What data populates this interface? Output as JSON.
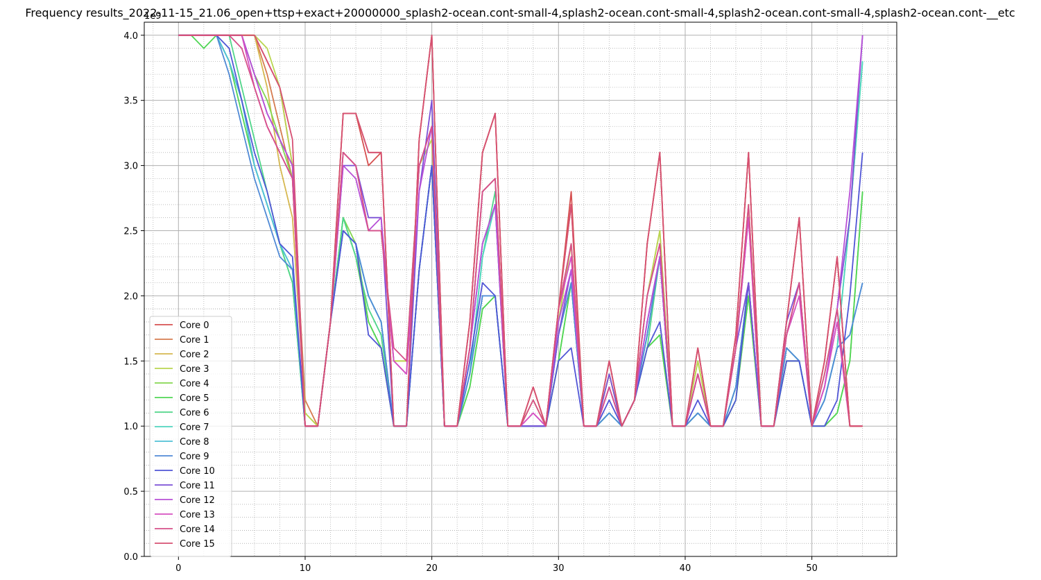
{
  "chart_data": {
    "type": "line",
    "title": "Frequency results_2022-11-15_21.06_open+ttsp+exact+20000000_splash2-ocean.cont-small-4,splash2-ocean.cont-small-4,splash2-ocean.cont-small-4,splash2-ocean.cont-__etc",
    "xlabel": "",
    "ylabel": "",
    "y_offset_label": "1e9",
    "xlim": [
      -2.7,
      56.7
    ],
    "ylim": [
      0,
      4.1
    ],
    "x_ticks": [
      "0",
      "10",
      "20",
      "30",
      "40",
      "50"
    ],
    "y_ticks": [
      "0.0",
      "0.5",
      "1.0",
      "1.5",
      "2.0",
      "2.5",
      "3.0",
      "3.5",
      "4.0"
    ],
    "grid": true,
    "minor_grid": true,
    "legend_position": "lower-left",
    "x": [
      0,
      1,
      2,
      3,
      4,
      5,
      6,
      7,
      8,
      9,
      10,
      11,
      12,
      13,
      14,
      15,
      16,
      17,
      18,
      19,
      20,
      21,
      22,
      23,
      24,
      25,
      26,
      27,
      28,
      29,
      30,
      31,
      32,
      33,
      34,
      35,
      36,
      37,
      38,
      39,
      40,
      41,
      42,
      43,
      44,
      45,
      46,
      47,
      48,
      49,
      50,
      51,
      52,
      53,
      54
    ],
    "series": [
      {
        "name": "Core 0",
        "color": "#d65050",
        "values": [
          4.0,
          4.0,
          4.0,
          4.0,
          4.0,
          4.0,
          4.0,
          3.8,
          3.6,
          3.0,
          1.0,
          1.0,
          1.8,
          3.4,
          3.4,
          3.0,
          3.1,
          1.0,
          1.0,
          3.2,
          4.0,
          1.0,
          1.0,
          1.8,
          3.1,
          3.4,
          1.0,
          1.0,
          1.3,
          1.0,
          1.9,
          2.8,
          1.0,
          1.0,
          1.5,
          1.0,
          1.2,
          2.4,
          3.1,
          1.0,
          1.0,
          1.6,
          1.0,
          1.0,
          1.7,
          3.1,
          1.0,
          1.0,
          1.8,
          2.6,
          1.0,
          1.5,
          2.3,
          1.0,
          1.0
        ]
      },
      {
        "name": "Core 1",
        "color": "#d67b50",
        "values": [
          4.0,
          4.0,
          4.0,
          4.0,
          4.0,
          4.0,
          4.0,
          3.7,
          3.3,
          2.9,
          1.2,
          1.0,
          1.8,
          3.4,
          3.4,
          3.1,
          3.1,
          1.0,
          1.0,
          3.2,
          4.0,
          1.0,
          1.0,
          1.8,
          3.1,
          3.4,
          1.0,
          1.0,
          1.3,
          1.0,
          1.9,
          2.7,
          1.0,
          1.0,
          1.5,
          1.0,
          1.2,
          2.4,
          3.1,
          1.0,
          1.0,
          1.6,
          1.0,
          1.0,
          1.7,
          3.1,
          1.0,
          1.0,
          1.8,
          2.6,
          1.0,
          1.5,
          2.3,
          1.0,
          1.0
        ]
      },
      {
        "name": "Core 2",
        "color": "#d6b850",
        "values": [
          4.0,
          4.0,
          4.0,
          4.0,
          4.0,
          4.0,
          4.0,
          3.6,
          3.0,
          2.6,
          1.1,
          1.0,
          1.8,
          3.1,
          3.0,
          2.5,
          2.5,
          1.5,
          1.5,
          3.0,
          3.2,
          1.0,
          1.0,
          1.6,
          2.8,
          2.9,
          1.0,
          1.0,
          1.2,
          1.0,
          1.8,
          2.4,
          1.0,
          1.0,
          1.4,
          1.0,
          1.2,
          2.0,
          2.5,
          1.0,
          1.0,
          1.5,
          1.0,
          1.0,
          1.6,
          2.7,
          1.0,
          1.0,
          1.7,
          2.1,
          1.0,
          1.4,
          1.9,
          1.0,
          1.0
        ]
      },
      {
        "name": "Core 3",
        "color": "#b9d650",
        "values": [
          4.0,
          4.0,
          4.0,
          4.0,
          4.0,
          4.0,
          4.0,
          3.9,
          3.6,
          3.0,
          1.1,
          1.0,
          1.8,
          3.1,
          3.0,
          2.5,
          2.5,
          1.5,
          1.5,
          3.0,
          3.2,
          1.0,
          1.0,
          1.6,
          2.8,
          2.9,
          1.0,
          1.0,
          1.2,
          1.0,
          1.8,
          2.4,
          1.0,
          1.0,
          1.4,
          1.0,
          1.2,
          2.0,
          2.5,
          1.0,
          1.0,
          1.5,
          1.0,
          1.0,
          1.6,
          2.7,
          1.0,
          1.0,
          1.7,
          2.1,
          1.0,
          1.4,
          1.9,
          1.0,
          1.0
        ]
      },
      {
        "name": "Core 4",
        "color": "#84d650",
        "values": [
          4.0,
          4.0,
          4.0,
          4.0,
          4.0,
          4.0,
          3.7,
          3.5,
          3.2,
          2.9,
          1.0,
          1.0,
          1.8,
          2.6,
          2.4,
          1.8,
          1.6,
          1.0,
          1.0,
          2.2,
          3.0,
          1.0,
          1.0,
          1.3,
          1.9,
          2.0,
          1.0,
          1.0,
          1.0,
          1.0,
          1.5,
          2.1,
          1.0,
          1.0,
          1.1,
          1.0,
          1.2,
          1.6,
          1.7,
          1.0,
          1.0,
          1.1,
          1.0,
          1.0,
          1.2,
          2.0,
          1.0,
          1.0,
          1.5,
          1.5,
          1.0,
          1.0,
          1.1,
          1.5,
          2.8
        ]
      },
      {
        "name": "Core 5",
        "color": "#50d655",
        "values": [
          4.0,
          4.0,
          3.9,
          4.0,
          3.8,
          3.4,
          3.0,
          2.7,
          2.4,
          2.1,
          1.0,
          1.0,
          1.8,
          2.6,
          2.3,
          1.8,
          1.6,
          1.0,
          1.0,
          2.2,
          3.0,
          1.0,
          1.0,
          1.3,
          1.9,
          2.0,
          1.0,
          1.0,
          1.0,
          1.0,
          1.5,
          2.1,
          1.0,
          1.0,
          1.1,
          1.0,
          1.2,
          1.6,
          1.7,
          1.0,
          1.0,
          1.1,
          1.0,
          1.0,
          1.2,
          2.0,
          1.0,
          1.0,
          1.5,
          1.5,
          1.0,
          1.0,
          1.1,
          1.5,
          2.8
        ]
      },
      {
        "name": "Core 6",
        "color": "#50d68a",
        "values": [
          4.0,
          4.0,
          4.0,
          4.0,
          4.0,
          3.6,
          3.2,
          2.8,
          2.4,
          2.1,
          1.0,
          1.0,
          1.8,
          2.6,
          2.3,
          1.9,
          1.7,
          1.0,
          1.0,
          2.2,
          3.0,
          1.0,
          1.0,
          1.4,
          2.3,
          2.8,
          1.0,
          1.0,
          1.0,
          1.0,
          1.7,
          2.1,
          1.0,
          1.0,
          1.1,
          1.0,
          1.2,
          1.6,
          2.3,
          1.0,
          1.0,
          1.1,
          1.0,
          1.0,
          1.3,
          2.1,
          1.0,
          1.0,
          1.6,
          1.5,
          1.0,
          1.2,
          1.6,
          2.6,
          3.8
        ]
      },
      {
        "name": "Core 7",
        "color": "#50d6c0",
        "values": [
          4.0,
          4.0,
          4.0,
          4.0,
          3.8,
          3.5,
          3.0,
          2.7,
          2.4,
          2.2,
          1.0,
          1.0,
          1.8,
          2.5,
          2.4,
          2.0,
          1.8,
          1.0,
          1.0,
          2.2,
          3.0,
          1.0,
          1.0,
          1.4,
          2.3,
          2.7,
          1.0,
          1.0,
          1.0,
          1.0,
          1.7,
          2.1,
          1.0,
          1.0,
          1.1,
          1.0,
          1.2,
          1.7,
          2.3,
          1.0,
          1.0,
          1.1,
          1.0,
          1.0,
          1.3,
          2.1,
          1.0,
          1.0,
          1.6,
          1.5,
          1.0,
          1.2,
          1.6,
          2.6,
          3.8
        ]
      },
      {
        "name": "Core 8",
        "color": "#50c0d6",
        "values": [
          4.0,
          4.0,
          4.0,
          4.0,
          3.8,
          3.5,
          3.0,
          2.7,
          2.4,
          2.2,
          1.0,
          1.0,
          1.8,
          2.5,
          2.4,
          2.0,
          1.8,
          1.0,
          1.0,
          2.2,
          3.0,
          1.0,
          1.0,
          1.4,
          2.0,
          2.0,
          1.0,
          1.0,
          1.0,
          1.0,
          1.7,
          2.1,
          1.0,
          1.0,
          1.1,
          1.0,
          1.2,
          1.7,
          2.3,
          1.0,
          1.0,
          1.1,
          1.0,
          1.0,
          1.3,
          2.1,
          1.0,
          1.0,
          1.6,
          1.5,
          1.0,
          1.2,
          1.6,
          1.7,
          2.1
        ]
      },
      {
        "name": "Core 9",
        "color": "#508ad6",
        "values": [
          4.0,
          4.0,
          4.0,
          4.0,
          3.7,
          3.3,
          2.9,
          2.6,
          2.3,
          2.2,
          1.0,
          1.0,
          1.8,
          2.5,
          2.4,
          2.0,
          1.8,
          1.0,
          1.0,
          2.2,
          3.0,
          1.0,
          1.0,
          1.4,
          2.0,
          2.0,
          1.0,
          1.0,
          1.0,
          1.0,
          1.7,
          2.1,
          1.0,
          1.0,
          1.1,
          1.0,
          1.2,
          1.7,
          2.3,
          1.0,
          1.0,
          1.1,
          1.0,
          1.0,
          1.3,
          2.1,
          1.0,
          1.0,
          1.6,
          1.5,
          1.0,
          1.2,
          1.6,
          1.7,
          2.1
        ]
      },
      {
        "name": "Core 10",
        "color": "#5055d6",
        "values": [
          4.0,
          4.0,
          4.0,
          4.0,
          3.9,
          3.5,
          3.1,
          2.8,
          2.4,
          2.3,
          1.0,
          1.0,
          1.8,
          2.5,
          2.4,
          1.7,
          1.6,
          1.0,
          1.0,
          2.2,
          3.0,
          1.0,
          1.0,
          1.5,
          2.1,
          2.0,
          1.0,
          1.0,
          1.0,
          1.0,
          1.5,
          1.6,
          1.0,
          1.0,
          1.2,
          1.0,
          1.2,
          1.6,
          1.8,
          1.0,
          1.0,
          1.2,
          1.0,
          1.0,
          1.2,
          2.1,
          1.0,
          1.0,
          1.5,
          1.5,
          1.0,
          1.0,
          1.2,
          2.0,
          3.1
        ]
      },
      {
        "name": "Core 11",
        "color": "#7b50d6",
        "values": [
          4.0,
          4.0,
          4.0,
          4.0,
          4.0,
          4.0,
          3.7,
          3.4,
          3.2,
          3.0,
          1.0,
          1.0,
          1.8,
          3.0,
          3.0,
          2.6,
          2.6,
          1.0,
          1.0,
          2.8,
          3.5,
          1.0,
          1.0,
          1.6,
          2.4,
          2.7,
          1.0,
          1.0,
          1.0,
          1.0,
          1.7,
          2.2,
          1.0,
          1.0,
          1.4,
          1.0,
          1.2,
          1.8,
          2.3,
          1.0,
          1.0,
          1.4,
          1.0,
          1.0,
          1.6,
          2.1,
          1.0,
          1.0,
          1.8,
          2.1,
          1.0,
          1.3,
          1.9,
          2.6,
          4.0
        ]
      },
      {
        "name": "Core 12",
        "color": "#b850d6",
        "values": [
          4.0,
          4.0,
          4.0,
          4.0,
          4.0,
          4.0,
          3.7,
          3.4,
          3.2,
          3.0,
          1.0,
          1.0,
          1.8,
          3.0,
          2.9,
          2.5,
          2.6,
          1.5,
          1.4,
          2.8,
          3.3,
          1.0,
          1.0,
          1.6,
          2.4,
          2.7,
          1.0,
          1.0,
          1.1,
          1.0,
          1.8,
          2.2,
          1.0,
          1.0,
          1.3,
          1.0,
          1.2,
          1.8,
          2.3,
          1.0,
          1.0,
          1.4,
          1.0,
          1.0,
          1.6,
          2.6,
          1.0,
          1.0,
          1.7,
          2.1,
          1.0,
          1.3,
          1.9,
          2.8,
          4.0
        ]
      },
      {
        "name": "Core 13",
        "color": "#d650c0",
        "values": [
          4.0,
          4.0,
          4.0,
          4.0,
          4.0,
          4.0,
          3.6,
          3.3,
          3.1,
          2.9,
          1.0,
          1.0,
          1.8,
          3.1,
          3.0,
          2.5,
          2.5,
          1.5,
          1.4,
          3.0,
          3.3,
          1.0,
          1.0,
          1.6,
          2.8,
          2.9,
          1.0,
          1.0,
          1.1,
          1.0,
          1.9,
          2.3,
          1.0,
          1.0,
          1.3,
          1.0,
          1.2,
          2.0,
          2.4,
          1.0,
          1.0,
          1.4,
          1.0,
          1.0,
          1.6,
          2.6,
          1.0,
          1.0,
          1.7,
          2.0,
          1.0,
          1.3,
          1.8,
          1.0,
          1.0
        ]
      },
      {
        "name": "Core 14",
        "color": "#d6508a",
        "values": [
          4.0,
          4.0,
          4.0,
          4.0,
          4.0,
          3.9,
          3.6,
          3.3,
          3.1,
          2.9,
          1.0,
          1.0,
          1.8,
          3.1,
          3.0,
          2.5,
          2.5,
          1.6,
          1.5,
          3.0,
          3.3,
          1.0,
          1.0,
          1.6,
          2.8,
          2.9,
          1.0,
          1.0,
          1.2,
          1.0,
          1.9,
          2.4,
          1.0,
          1.0,
          1.3,
          1.0,
          1.2,
          2.0,
          2.4,
          1.0,
          1.0,
          1.4,
          1.0,
          1.0,
          1.6,
          2.7,
          1.0,
          1.0,
          1.7,
          2.1,
          1.0,
          1.4,
          1.9,
          1.0,
          1.0
        ]
      },
      {
        "name": "Core 15",
        "color": "#d65073",
        "values": [
          4.0,
          4.0,
          4.0,
          4.0,
          4.0,
          4.0,
          4.0,
          3.8,
          3.6,
          3.2,
          1.0,
          1.0,
          1.8,
          3.4,
          3.4,
          3.1,
          3.1,
          1.0,
          1.0,
          3.2,
          4.0,
          1.0,
          1.0,
          1.8,
          3.1,
          3.4,
          1.0,
          1.0,
          1.3,
          1.0,
          1.9,
          2.7,
          1.0,
          1.0,
          1.5,
          1.0,
          1.2,
          2.4,
          3.1,
          1.0,
          1.0,
          1.6,
          1.0,
          1.0,
          1.7,
          3.1,
          1.0,
          1.0,
          1.8,
          2.6,
          1.0,
          1.5,
          2.3,
          1.0,
          1.0
        ]
      }
    ]
  }
}
